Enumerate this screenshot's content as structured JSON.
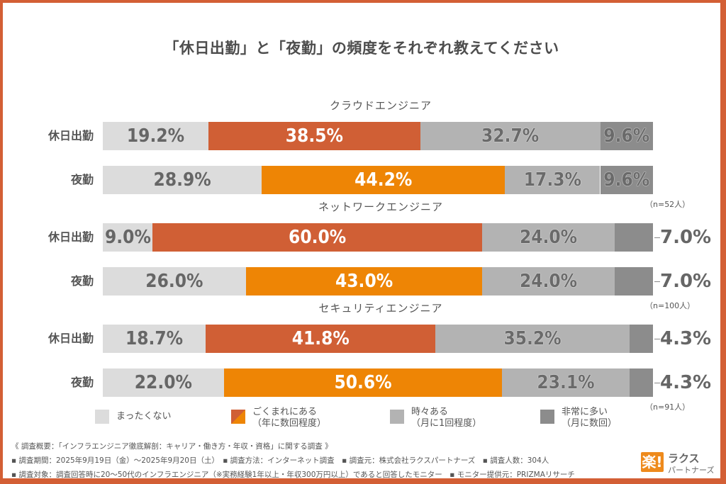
{
  "chart_data": {
    "type": "bar",
    "orientation": "horizontal-stacked-100",
    "title": "「休日出勤」と「夜勤」の頻度をそれぞれ教えてください",
    "categories_order": [
      "まったくない",
      "ごくまれにある（年に数回程度）",
      "時々ある（月に1回程度）",
      "非常に多い（月に数回）"
    ],
    "groups": [
      {
        "name": "クラウドエンジニア",
        "n_label": "（n=52人）",
        "rows": [
          {
            "label": "休日出勤",
            "type": "holiday",
            "values": [
              19.2,
              38.5,
              32.7,
              9.6
            ],
            "labels": [
              "19.2%",
              "38.5%",
              "32.7%",
              "9.6%"
            ],
            "outside_last": false
          },
          {
            "label": "夜勤",
            "type": "night",
            "values": [
              28.9,
              44.2,
              17.3,
              9.6
            ],
            "labels": [
              "28.9%",
              "44.2%",
              "17.3%",
              "9.6%"
            ],
            "outside_last": false
          }
        ]
      },
      {
        "name": "ネットワークエンジニア",
        "n_label": "（n=100人）",
        "rows": [
          {
            "label": "休日出勤",
            "type": "holiday",
            "values": [
              9.0,
              60.0,
              24.0,
              7.0
            ],
            "labels": [
              "9.0%",
              "60.0%",
              "24.0%",
              "7.0%"
            ],
            "outside_last": true
          },
          {
            "label": "夜勤",
            "type": "night",
            "values": [
              26.0,
              43.0,
              24.0,
              7.0
            ],
            "labels": [
              "26.0%",
              "43.0%",
              "24.0%",
              "7.0%"
            ],
            "outside_last": true
          }
        ]
      },
      {
        "name": "セキュリティエンジニア",
        "n_label": "（n=91人）",
        "rows": [
          {
            "label": "休日出勤",
            "type": "holiday",
            "values": [
              18.7,
              41.8,
              35.2,
              4.3
            ],
            "labels": [
              "18.7%",
              "41.8%",
              "35.2%",
              "4.3%"
            ],
            "outside_last": true
          },
          {
            "label": "夜勤",
            "type": "night",
            "values": [
              22.0,
              50.6,
              23.1,
              4.3
            ],
            "labels": [
              "22.0%",
              "50.6%",
              "23.1%",
              "4.3%"
            ],
            "outside_last": true
          }
        ]
      }
    ],
    "legend": [
      {
        "label": "まったくない",
        "color": "#dcdcdc"
      },
      {
        "label": "ごくまれにある\n（年に数回程度）",
        "color": "split"
      },
      {
        "label": "時々ある\n（月に1回程度）",
        "color": "#b3b3b3"
      },
      {
        "label": "非常に多い\n（月に数回）",
        "color": "#8c8c8c"
      }
    ],
    "legend_placement": "bottom",
    "xlim": [
      0,
      100
    ]
  },
  "colors": {
    "never": "#dcdcdc",
    "rare_holiday": "#d05f35",
    "rare_night": "#ee8505",
    "sometimes": "#b3b3b3",
    "often": "#8c8c8c",
    "border": "#d35f35"
  },
  "footer": {
    "line1": "《 調査概要：「インフラエンジニア徹底解剖：キャリア・働き方・年収・資格」に関する調査 》",
    "line2": "▪ 調査期間：2025年9月19日（金）〜2025年9月20日（土）　▪ 調査方法：インターネット調査　▪ 調査元：株式会社ラクスパートナーズ　▪ 調査人数：304人",
    "line3": "▪ 調査対象：調査回答時に20〜50代のインフラエンジニア（※実務経験1年以上・年収300万円以上）であると回答したモニター　▪ モニター提供元：PRIZMAリサーチ"
  },
  "logo": {
    "mark": "楽!",
    "top": "ラクス",
    "bottom": "パートナーズ"
  }
}
